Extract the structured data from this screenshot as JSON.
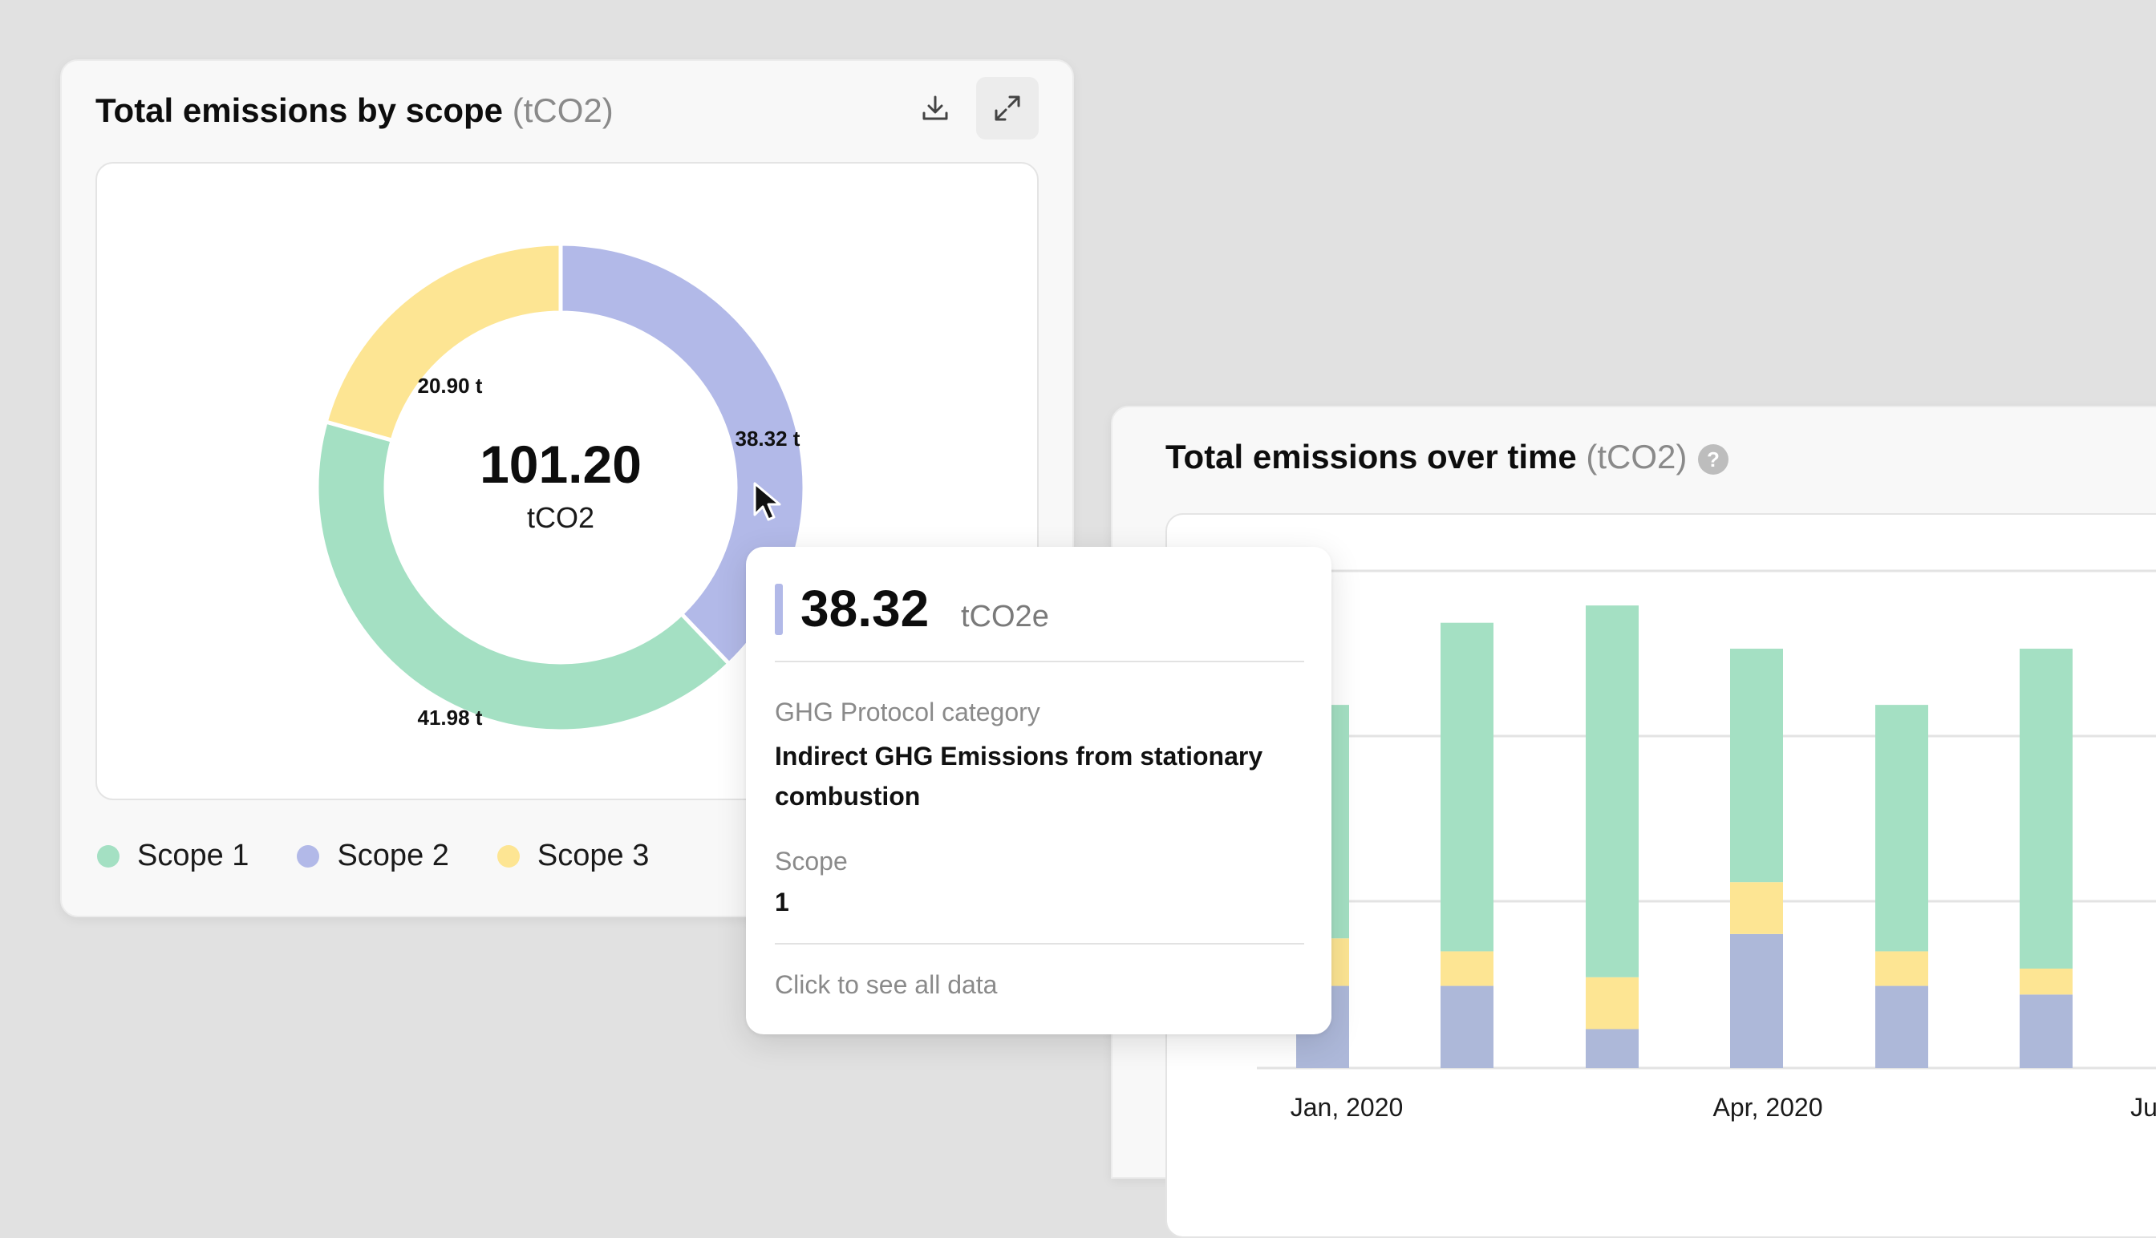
{
  "colors": {
    "scope1": "#a4e0c3",
    "scope2": "#b2b9e8",
    "scope3": "#fde593",
    "bar_scope2": "#adb8d9"
  },
  "scope_card": {
    "title": "Total emissions by scope",
    "unit": "(tCO2)",
    "download_icon": "download-icon",
    "expand_icon": "expand-icon",
    "center_value": "101.20",
    "center_unit": "tCO2",
    "legend": [
      "Scope 1",
      "Scope 2",
      "Scope 3"
    ]
  },
  "time_card": {
    "title": "Total emissions over time",
    "unit": "(tCO2)",
    "help_icon": "?"
  },
  "tooltip": {
    "value": "38.32",
    "unit": "tCO2e",
    "category_label": "GHG Protocol category",
    "category_value": "Indirect GHG Emissions from stationary combustion",
    "scope_label": "Scope",
    "scope_value": "1",
    "link": "Click to see all data"
  },
  "chart_data": [
    {
      "type": "pie",
      "categories": [
        "Scope 1",
        "Scope 2",
        "Scope 3"
      ],
      "values": [
        41.98,
        38.32,
        20.9
      ],
      "data_labels": [
        "41.98 t",
        "38.32 t",
        "20.90 t"
      ],
      "total": 101.2
    },
    {
      "type": "bar",
      "stacked": true,
      "x_tick_labels": [
        "Jan, 2020",
        "Apr, 2020",
        "Ju"
      ],
      "series": [
        {
          "name": "Scope 2",
          "values": [
            1.9,
            1.9,
            0.9,
            3.1,
            1.9,
            1.7
          ]
        },
        {
          "name": "Scope 3",
          "values": [
            1.1,
            0.8,
            1.2,
            1.2,
            0.8,
            0.6
          ]
        },
        {
          "name": "Scope 1",
          "values": [
            5.4,
            7.6,
            8.6,
            5.4,
            5.7,
            7.4
          ]
        }
      ],
      "ylim": [
        0,
        11.5
      ],
      "grid": true
    }
  ]
}
